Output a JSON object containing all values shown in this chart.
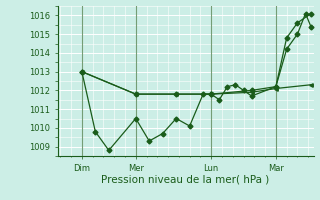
{
  "background_color": "#cceee6",
  "grid_color": "#ffffff",
  "line_color": "#1a5c1a",
  "xlabel": "Pression niveau de la mer( hPa )",
  "ylim": [
    1008.5,
    1016.5
  ],
  "yticks": [
    1009,
    1010,
    1011,
    1012,
    1013,
    1014,
    1015,
    1016
  ],
  "xtick_labels": [
    "Dim",
    "Mer",
    "Lun",
    "Mar"
  ],
  "xtick_positions": [
    16,
    56,
    112,
    160
  ],
  "total_hours": 186,
  "xlim": [
    -2,
    188
  ],
  "series1_x": [
    16,
    26,
    36,
    56,
    66,
    76,
    86,
    96,
    106,
    112,
    118,
    124,
    130,
    136,
    142,
    160,
    168,
    176,
    186
  ],
  "series1_y": [
    1013.0,
    1009.8,
    1008.8,
    1010.5,
    1009.3,
    1009.7,
    1010.5,
    1010.1,
    1011.8,
    1011.8,
    1011.5,
    1012.2,
    1012.3,
    1012.0,
    1011.7,
    1012.2,
    1014.8,
    1015.6,
    1016.1
  ],
  "series2_x": [
    16,
    56,
    86,
    112,
    142,
    160,
    186
  ],
  "series2_y": [
    1013.0,
    1011.8,
    1011.8,
    1011.8,
    1011.9,
    1012.1,
    1012.3
  ],
  "series3_x": [
    16,
    56,
    86,
    112,
    142,
    160,
    168,
    176,
    182,
    186
  ],
  "series3_y": [
    1013.0,
    1011.8,
    1011.8,
    1011.8,
    1012.0,
    1012.2,
    1014.2,
    1015.0,
    1016.1,
    1015.4
  ],
  "vline_positions": [
    16,
    56,
    112,
    160
  ],
  "marker_size": 2.5,
  "tick_fontsize": 6,
  "xlabel_fontsize": 7.5
}
